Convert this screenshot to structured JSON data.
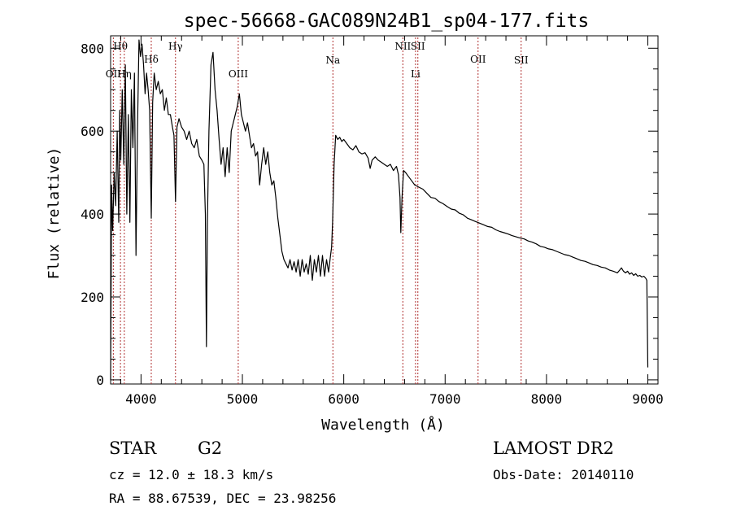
{
  "chart_data": {
    "type": "line",
    "title": "spec-56668-GAC089N24B1_sp04-177.fits",
    "xlabel": "Wavelength (Å)",
    "ylabel": "Flux (relative)",
    "xlim": [
      3700,
      9100
    ],
    "ylim": [
      -10,
      830
    ],
    "x_ticks": [
      4000,
      5000,
      6000,
      7000,
      8000,
      9000
    ],
    "y_ticks": [
      0,
      200,
      400,
      600,
      800
    ],
    "grid": false,
    "line_color": "#000000",
    "marker_color": "#b03030",
    "lines": [
      {
        "label": "OII",
        "wavelength": 3727,
        "row": 2
      },
      {
        "label": "Hθ",
        "wavelength": 3797,
        "row": 1
      },
      {
        "label": "Hη",
        "wavelength": 3835,
        "row": 2
      },
      {
        "label": "Hδ",
        "wavelength": 4101,
        "row": 3
      },
      {
        "label": "Hγ",
        "wavelength": 4340,
        "row": 1
      },
      {
        "label": "OIII",
        "wavelength": 4959,
        "row": 2
      },
      {
        "label": "Na",
        "wavelength": 5893,
        "row": 4
      },
      {
        "label": "NII",
        "wavelength": 6583,
        "row": 1
      },
      {
        "label": "Li",
        "wavelength": 6708,
        "row": 2
      },
      {
        "label": "SII",
        "wavelength": 6731,
        "row": 1
      },
      {
        "label": "OII",
        "wavelength": 7325,
        "row": 3
      },
      {
        "label": "SII",
        "wavelength": 7750,
        "row": 4
      }
    ],
    "spectrum": [
      [
        3700,
        0
      ],
      [
        3710,
        470
      ],
      [
        3720,
        360
      ],
      [
        3735,
        500
      ],
      [
        3750,
        420
      ],
      [
        3765,
        600
      ],
      [
        3780,
        380
      ],
      [
        3790,
        650
      ],
      [
        3800,
        530
      ],
      [
        3815,
        700
      ],
      [
        3830,
        520
      ],
      [
        3845,
        760
      ],
      [
        3860,
        400
      ],
      [
        3875,
        640
      ],
      [
        3890,
        380
      ],
      [
        3905,
        700
      ],
      [
        3920,
        560
      ],
      [
        3935,
        740
      ],
      [
        3950,
        300
      ],
      [
        3965,
        600
      ],
      [
        3980,
        820
      ],
      [
        3995,
        780
      ],
      [
        4010,
        810
      ],
      [
        4025,
        760
      ],
      [
        4040,
        690
      ],
      [
        4055,
        740
      ],
      [
        4070,
        700
      ],
      [
        4085,
        650
      ],
      [
        4101,
        390
      ],
      [
        4115,
        670
      ],
      [
        4130,
        740
      ],
      [
        4150,
        700
      ],
      [
        4170,
        720
      ],
      [
        4190,
        690
      ],
      [
        4210,
        700
      ],
      [
        4230,
        650
      ],
      [
        4250,
        680
      ],
      [
        4270,
        640
      ],
      [
        4290,
        640
      ],
      [
        4310,
        610
      ],
      [
        4325,
        590
      ],
      [
        4340,
        430
      ],
      [
        4355,
        610
      ],
      [
        4375,
        630
      ],
      [
        4400,
        610
      ],
      [
        4425,
        600
      ],
      [
        4450,
        580
      ],
      [
        4475,
        600
      ],
      [
        4500,
        570
      ],
      [
        4525,
        560
      ],
      [
        4550,
        580
      ],
      [
        4575,
        540
      ],
      [
        4600,
        530
      ],
      [
        4620,
        520
      ],
      [
        4635,
        400
      ],
      [
        4645,
        80
      ],
      [
        4655,
        380
      ],
      [
        4670,
        600
      ],
      [
        4690,
        760
      ],
      [
        4710,
        790
      ],
      [
        4730,
        700
      ],
      [
        4750,
        650
      ],
      [
        4770,
        580
      ],
      [
        4790,
        520
      ],
      [
        4810,
        560
      ],
      [
        4830,
        490
      ],
      [
        4850,
        560
      ],
      [
        4870,
        500
      ],
      [
        4890,
        600
      ],
      [
        4910,
        620
      ],
      [
        4930,
        640
      ],
      [
        4950,
        660
      ],
      [
        4970,
        690
      ],
      [
        4990,
        640
      ],
      [
        5010,
        620
      ],
      [
        5030,
        600
      ],
      [
        5050,
        620
      ],
      [
        5070,
        590
      ],
      [
        5090,
        560
      ],
      [
        5110,
        570
      ],
      [
        5130,
        540
      ],
      [
        5150,
        550
      ],
      [
        5170,
        470
      ],
      [
        5190,
        520
      ],
      [
        5210,
        560
      ],
      [
        5230,
        520
      ],
      [
        5250,
        550
      ],
      [
        5270,
        500
      ],
      [
        5290,
        470
      ],
      [
        5310,
        480
      ],
      [
        5330,
        440
      ],
      [
        5350,
        390
      ],
      [
        5370,
        350
      ],
      [
        5390,
        310
      ],
      [
        5410,
        290
      ],
      [
        5430,
        280
      ],
      [
        5450,
        270
      ],
      [
        5470,
        290
      ],
      [
        5490,
        265
      ],
      [
        5510,
        285
      ],
      [
        5530,
        260
      ],
      [
        5550,
        290
      ],
      [
        5570,
        250
      ],
      [
        5590,
        290
      ],
      [
        5610,
        260
      ],
      [
        5630,
        280
      ],
      [
        5650,
        255
      ],
      [
        5670,
        300
      ],
      [
        5690,
        240
      ],
      [
        5710,
        290
      ],
      [
        5730,
        260
      ],
      [
        5750,
        300
      ],
      [
        5770,
        250
      ],
      [
        5790,
        300
      ],
      [
        5810,
        250
      ],
      [
        5830,
        290
      ],
      [
        5850,
        260
      ],
      [
        5870,
        300
      ],
      [
        5880,
        320
      ],
      [
        5890,
        380
      ],
      [
        5905,
        520
      ],
      [
        5920,
        590
      ],
      [
        5940,
        580
      ],
      [
        5960,
        585
      ],
      [
        5980,
        575
      ],
      [
        6000,
        580
      ],
      [
        6030,
        570
      ],
      [
        6060,
        560
      ],
      [
        6090,
        555
      ],
      [
        6120,
        565
      ],
      [
        6150,
        550
      ],
      [
        6180,
        545
      ],
      [
        6210,
        548
      ],
      [
        6240,
        535
      ],
      [
        6260,
        510
      ],
      [
        6280,
        530
      ],
      [
        6310,
        538
      ],
      [
        6340,
        530
      ],
      [
        6370,
        525
      ],
      [
        6400,
        520
      ],
      [
        6430,
        515
      ],
      [
        6460,
        520
      ],
      [
        6490,
        505
      ],
      [
        6520,
        515
      ],
      [
        6540,
        495
      ],
      [
        6555,
        440
      ],
      [
        6563,
        355
      ],
      [
        6575,
        440
      ],
      [
        6590,
        505
      ],
      [
        6610,
        500
      ],
      [
        6640,
        490
      ],
      [
        6670,
        480
      ],
      [
        6700,
        470
      ],
      [
        6740,
        465
      ],
      [
        6780,
        460
      ],
      [
        6820,
        450
      ],
      [
        6860,
        440
      ],
      [
        6900,
        438
      ],
      [
        6940,
        430
      ],
      [
        6980,
        425
      ],
      [
        7020,
        418
      ],
      [
        7060,
        412
      ],
      [
        7100,
        410
      ],
      [
        7140,
        402
      ],
      [
        7180,
        398
      ],
      [
        7220,
        390
      ],
      [
        7260,
        386
      ],
      [
        7300,
        382
      ],
      [
        7340,
        378
      ],
      [
        7380,
        374
      ],
      [
        7420,
        370
      ],
      [
        7460,
        368
      ],
      [
        7500,
        362
      ],
      [
        7540,
        358
      ],
      [
        7580,
        355
      ],
      [
        7620,
        352
      ],
      [
        7660,
        348
      ],
      [
        7700,
        345
      ],
      [
        7740,
        342
      ],
      [
        7780,
        340
      ],
      [
        7820,
        335
      ],
      [
        7860,
        332
      ],
      [
        7900,
        328
      ],
      [
        7940,
        322
      ],
      [
        7980,
        320
      ],
      [
        8020,
        316
      ],
      [
        8060,
        314
      ],
      [
        8100,
        310
      ],
      [
        8140,
        306
      ],
      [
        8180,
        302
      ],
      [
        8220,
        300
      ],
      [
        8260,
        296
      ],
      [
        8300,
        292
      ],
      [
        8340,
        288
      ],
      [
        8380,
        286
      ],
      [
        8420,
        282
      ],
      [
        8460,
        278
      ],
      [
        8500,
        276
      ],
      [
        8540,
        272
      ],
      [
        8580,
        270
      ],
      [
        8620,
        265
      ],
      [
        8660,
        262
      ],
      [
        8700,
        258
      ],
      [
        8740,
        270
      ],
      [
        8760,
        262
      ],
      [
        8780,
        258
      ],
      [
        8800,
        262
      ],
      [
        8820,
        255
      ],
      [
        8840,
        258
      ],
      [
        8860,
        252
      ],
      [
        8880,
        256
      ],
      [
        8900,
        250
      ],
      [
        8920,
        252
      ],
      [
        8940,
        248
      ],
      [
        8960,
        250
      ],
      [
        8980,
        245
      ],
      [
        8990,
        240
      ],
      [
        9000,
        30
      ]
    ]
  },
  "info": {
    "object_class": "STAR",
    "subclass": "G2",
    "survey": "LAMOST DR2",
    "redshift": "cz =  12.0 ± 18.3 km/s",
    "obs_date": "Obs-Date: 20140110",
    "coords": "RA =  88.67539, DEC =  23.98256"
  }
}
